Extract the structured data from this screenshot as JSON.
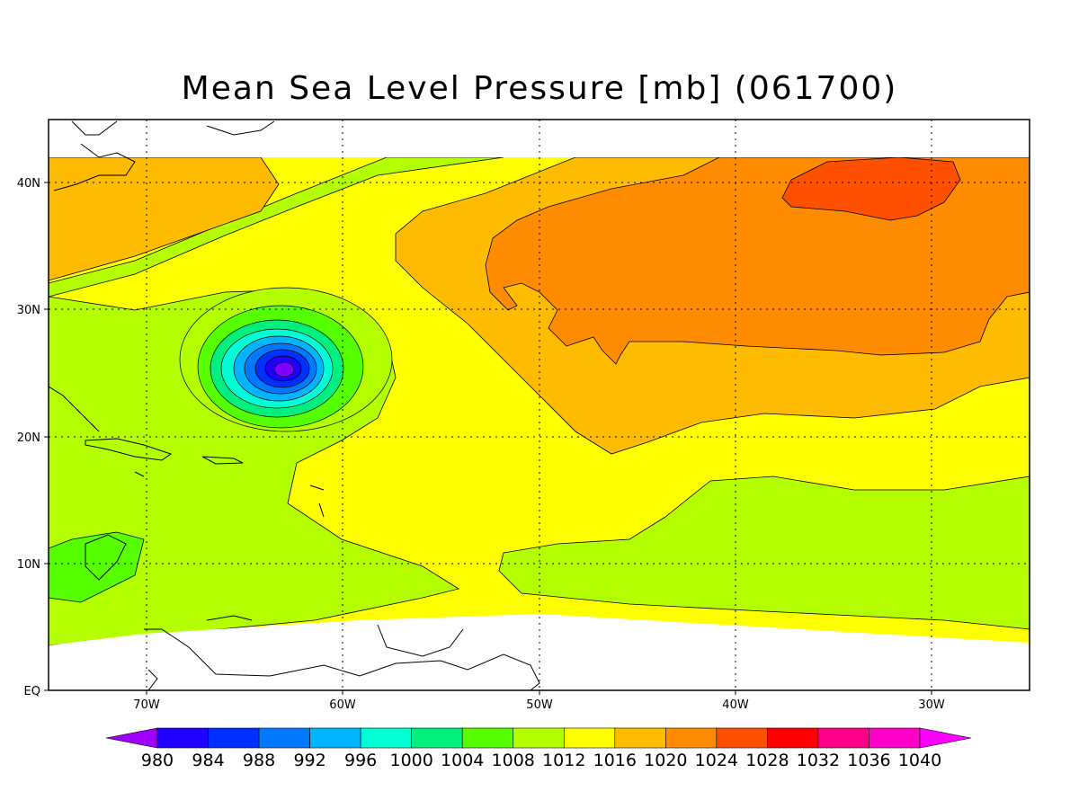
{
  "title": "Mean Sea Level Pressure [mb] (061700)",
  "lon_labels": [
    "70W",
    "60W",
    "50W",
    "40W",
    "30W"
  ],
  "lat_labels": [
    "EQ",
    "10N",
    "20N",
    "30N",
    "40N"
  ],
  "colorbar": {
    "labels": [
      "980",
      "984",
      "988",
      "992",
      "996",
      "1000",
      "1004",
      "1008",
      "1012",
      "1016",
      "1020",
      "1024",
      "1028",
      "1032",
      "1036",
      "1040"
    ],
    "colors": [
      "#a000ff",
      "#2000ff",
      "#0030ff",
      "#0078ff",
      "#00b4ff",
      "#00ffd4",
      "#00f080",
      "#55ff00",
      "#b4ff00",
      "#ffff00",
      "#ffbb00",
      "#ff8c00",
      "#ff5000",
      "#ff0000",
      "#ff0088",
      "#ff00c8",
      "#ff00ff"
    ]
  },
  "fill_colors": {
    "p1004": "#55ff00",
    "p1008": "#b4ff00",
    "p1012": "#ffff00",
    "p1016": "#ffbb00",
    "p1020": "#ff8c00",
    "p1024": "#ff5000"
  }
}
